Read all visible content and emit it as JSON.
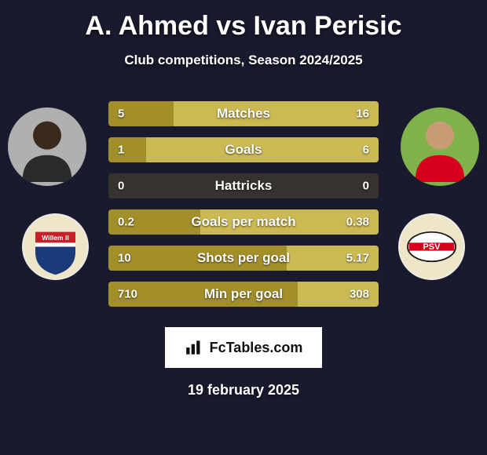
{
  "title": "A. Ahmed vs Ivan Perisic",
  "subtitle": "Club competitions, Season 2024/2025",
  "date": "19 february 2025",
  "watermark": "FcTables.com",
  "colors": {
    "background": "#1a1a2e",
    "bar_left": "#a38f2a",
    "bar_right": "#cbb954",
    "bar_track": "rgba(138,123,42,0.25)",
    "text": "#ffffff",
    "watermark_bg": "#ffffff",
    "watermark_text": "#111111"
  },
  "players": {
    "left": {
      "name": "A. Ahmed",
      "avatar_bg": "#b0b0b0",
      "club": "Willem II",
      "club_colors": {
        "top": "#c52027",
        "mid": "#1a3a7a",
        "band": "#ffffff"
      }
    },
    "right": {
      "name": "Ivan Perisic",
      "avatar_bg": "#7fb24a",
      "club": "PSV",
      "club_colors": {
        "outer": "#efe5c8",
        "inner": "#ffffff",
        "stripe": "#d6001c"
      }
    }
  },
  "stats": [
    {
      "label": "Matches",
      "left_val": "5",
      "right_val": "16",
      "left_pct": 24,
      "right_pct": 76
    },
    {
      "label": "Goals",
      "left_val": "1",
      "right_val": "6",
      "left_pct": 14,
      "right_pct": 86
    },
    {
      "label": "Hattricks",
      "left_val": "0",
      "right_val": "0",
      "left_pct": 0,
      "right_pct": 0
    },
    {
      "label": "Goals per match",
      "left_val": "0.2",
      "right_val": "0.38",
      "left_pct": 34,
      "right_pct": 66
    },
    {
      "label": "Shots per goal",
      "left_val": "10",
      "right_val": "5.17",
      "left_pct": 66,
      "right_pct": 34
    },
    {
      "label": "Min per goal",
      "left_val": "710",
      "right_val": "308",
      "left_pct": 70,
      "right_pct": 30
    }
  ],
  "typography": {
    "title_fontsize": 34,
    "subtitle_fontsize": 17,
    "stat_label_fontsize": 17,
    "stat_value_fontsize": 15,
    "date_fontsize": 18
  }
}
